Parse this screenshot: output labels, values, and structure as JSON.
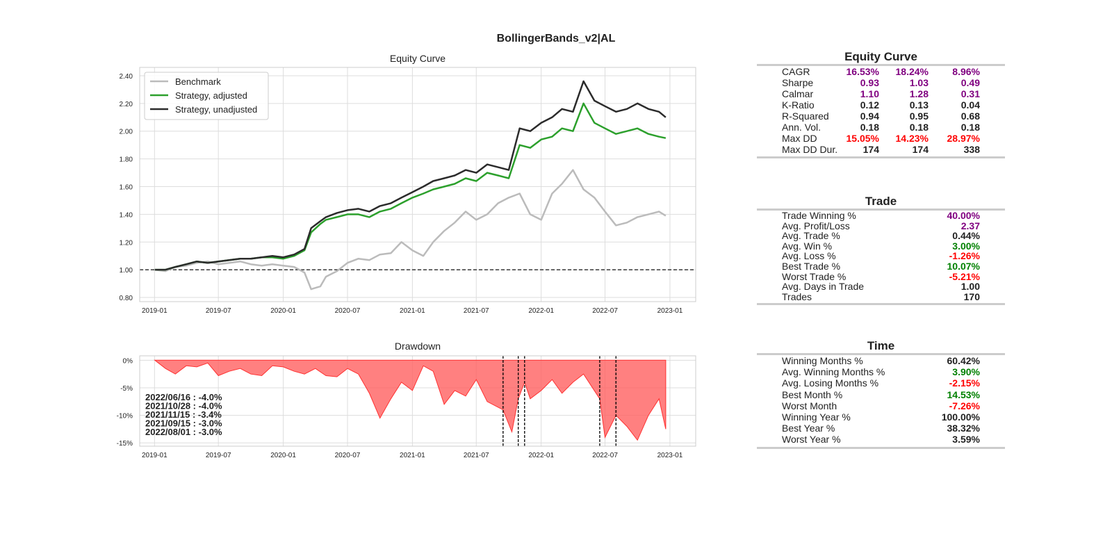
{
  "figure": {
    "title": "BollingerBands_v2|AL"
  },
  "colors": {
    "benchmark": "#bbbbbb",
    "strategy_adjusted": "#2ca02c",
    "strategy_unadjusted": "#2b2b2b",
    "drawdown_fill": "#ff6060",
    "purple": "#800080",
    "red": "#ff0000",
    "green": "#008000",
    "dark": "#222222"
  },
  "chart_data": [
    {
      "type": "line",
      "title": "Equity Curve",
      "xlabel": "",
      "ylabel": "",
      "x_ticks": [
        "2019-01",
        "2019-07",
        "2020-01",
        "2020-07",
        "2021-01",
        "2021-07",
        "2022-01",
        "2022-07",
        "2023-01"
      ],
      "y_ticks": [
        "0.80",
        "1.00",
        "1.20",
        "1.40",
        "1.60",
        "1.80",
        "2.00",
        "2.20",
        "2.40"
      ],
      "xlim": [
        "2018-11-20",
        "2023-03-15"
      ],
      "ylim": [
        0.77,
        2.46
      ],
      "grid": true,
      "legend": "top-left",
      "baseline": 1.0,
      "x": [
        "2019-01-02",
        "2019-02-01",
        "2019-03-01",
        "2019-04-01",
        "2019-05-01",
        "2019-06-01",
        "2019-07-01",
        "2019-08-01",
        "2019-09-01",
        "2019-10-01",
        "2019-11-01",
        "2019-12-01",
        "2020-01-01",
        "2020-02-01",
        "2020-03-01",
        "2020-03-20",
        "2020-04-15",
        "2020-05-01",
        "2020-06-01",
        "2020-07-01",
        "2020-08-01",
        "2020-09-01",
        "2020-10-01",
        "2020-11-01",
        "2020-12-01",
        "2021-01-01",
        "2021-02-01",
        "2021-03-01",
        "2021-04-01",
        "2021-05-01",
        "2021-06-01",
        "2021-07-01",
        "2021-08-01",
        "2021-09-01",
        "2021-10-01",
        "2021-11-01",
        "2021-12-01",
        "2022-01-01",
        "2022-02-01",
        "2022-03-01",
        "2022-04-01",
        "2022-05-01",
        "2022-06-01",
        "2022-07-01",
        "2022-08-01",
        "2022-09-01",
        "2022-10-01",
        "2022-11-01",
        "2022-12-01",
        "2022-12-20"
      ],
      "series": [
        {
          "name": "Benchmark",
          "values": [
            1.0,
            0.99,
            1.02,
            1.03,
            1.05,
            1.06,
            1.04,
            1.05,
            1.06,
            1.04,
            1.03,
            1.04,
            1.03,
            1.02,
            0.98,
            0.86,
            0.88,
            0.95,
            0.99,
            1.05,
            1.08,
            1.07,
            1.11,
            1.12,
            1.2,
            1.14,
            1.1,
            1.2,
            1.28,
            1.34,
            1.42,
            1.36,
            1.4,
            1.48,
            1.52,
            1.55,
            1.4,
            1.36,
            1.55,
            1.62,
            1.72,
            1.58,
            1.52,
            1.42,
            1.32,
            1.34,
            1.38,
            1.4,
            1.42,
            1.39
          ]
        },
        {
          "name": "Strategy, adjusted",
          "values": [
            1.0,
            1.0,
            1.02,
            1.04,
            1.06,
            1.05,
            1.06,
            1.07,
            1.08,
            1.08,
            1.09,
            1.09,
            1.08,
            1.1,
            1.14,
            1.27,
            1.33,
            1.36,
            1.38,
            1.4,
            1.4,
            1.38,
            1.42,
            1.44,
            1.48,
            1.52,
            1.55,
            1.58,
            1.6,
            1.62,
            1.66,
            1.64,
            1.7,
            1.68,
            1.66,
            1.9,
            1.88,
            1.94,
            1.96,
            2.02,
            2.0,
            2.2,
            2.06,
            2.02,
            1.98,
            2.0,
            2.02,
            1.98,
            1.96,
            1.95
          ]
        },
        {
          "name": "Strategy, unadjusted",
          "values": [
            1.0,
            1.0,
            1.02,
            1.04,
            1.06,
            1.05,
            1.06,
            1.07,
            1.08,
            1.08,
            1.09,
            1.1,
            1.09,
            1.11,
            1.15,
            1.3,
            1.35,
            1.38,
            1.41,
            1.43,
            1.44,
            1.42,
            1.46,
            1.48,
            1.52,
            1.56,
            1.6,
            1.64,
            1.66,
            1.68,
            1.72,
            1.7,
            1.76,
            1.74,
            1.72,
            2.02,
            2.0,
            2.06,
            2.1,
            2.16,
            2.14,
            2.36,
            2.22,
            2.18,
            2.14,
            2.16,
            2.2,
            2.16,
            2.14,
            2.1
          ]
        }
      ]
    },
    {
      "type": "area",
      "title": "Drawdown",
      "xlabel": "",
      "ylabel": "",
      "x_ticks": [
        "2019-01",
        "2019-07",
        "2020-01",
        "2020-07",
        "2021-01",
        "2021-07",
        "2022-01",
        "2022-07",
        "2023-01"
      ],
      "y_ticks": [
        "0%",
        "-5%",
        "-10%",
        "-15%"
      ],
      "xlim": [
        "2018-11-20",
        "2023-03-15"
      ],
      "ylim": [
        -15.6,
        0.8
      ],
      "grid": true,
      "x": [
        "2019-01-02",
        "2019-02-01",
        "2019-03-01",
        "2019-04-01",
        "2019-05-01",
        "2019-06-01",
        "2019-07-01",
        "2019-08-01",
        "2019-09-01",
        "2019-10-01",
        "2019-11-01",
        "2019-12-01",
        "2020-01-01",
        "2020-02-01",
        "2020-03-01",
        "2020-04-01",
        "2020-05-01",
        "2020-06-01",
        "2020-07-01",
        "2020-08-01",
        "2020-09-01",
        "2020-10-01",
        "2020-11-01",
        "2020-12-01",
        "2021-01-01",
        "2021-02-01",
        "2021-03-01",
        "2021-04-01",
        "2021-05-01",
        "2021-06-01",
        "2021-07-01",
        "2021-08-01",
        "2021-09-15",
        "2021-10-10",
        "2021-10-28",
        "2021-11-15",
        "2021-12-01",
        "2022-01-01",
        "2022-02-01",
        "2022-03-01",
        "2022-04-01",
        "2022-05-01",
        "2022-06-16",
        "2022-07-01",
        "2022-08-01",
        "2022-09-01",
        "2022-10-01",
        "2022-11-01",
        "2022-12-01",
        "2022-12-20"
      ],
      "values": [
        0,
        -1.5,
        -2.5,
        -1,
        -1.2,
        -0.5,
        -2.8,
        -2,
        -1.5,
        -2.5,
        -2.8,
        -1,
        -1.2,
        -2,
        -2.5,
        -1.5,
        -2.8,
        -3,
        -1.5,
        -2.5,
        -6,
        -10.5,
        -7,
        -4,
        -5.5,
        -1,
        -2,
        -8,
        -5.5,
        -6.5,
        -3.5,
        -7.5,
        -9,
        -13,
        -7,
        -4,
        -7,
        -5.5,
        -3.5,
        -6,
        -4,
        -2.5,
        -7,
        -14,
        -10,
        -12,
        -14.5,
        -10,
        -7,
        -12.5
      ],
      "highlight_dates": [
        "2021-09-15",
        "2021-10-28",
        "2021-11-15",
        "2022-06-16",
        "2022-08-01"
      ],
      "annotations": [
        "2022/06/16 : -4.0%",
        "2021/10/28 : -4.0%",
        "2021/11/15 : -3.4%",
        "2021/09/15 : -3.0%",
        "2022/08/01 : -3.0%"
      ]
    },
    {
      "type": "table",
      "title": "Equity Curve",
      "rows": [
        {
          "label": "CAGR",
          "values": [
            "16.53%",
            "18.24%",
            "8.96%"
          ],
          "color": "purple"
        },
        {
          "label": "Sharpe",
          "values": [
            "0.93",
            "1.03",
            "0.49"
          ],
          "color": "purple"
        },
        {
          "label": "Calmar",
          "values": [
            "1.10",
            "1.28",
            "0.31"
          ],
          "color": "purple"
        },
        {
          "label": "K-Ratio",
          "values": [
            "0.12",
            "0.13",
            "0.04"
          ],
          "color": "dark"
        },
        {
          "label": "R-Squared",
          "values": [
            "0.94",
            "0.95",
            "0.68"
          ],
          "color": "dark"
        },
        {
          "label": "Ann. Vol.",
          "values": [
            "0.18",
            "0.18",
            "0.18"
          ],
          "color": "dark"
        },
        {
          "label": "Max DD",
          "values": [
            "15.05%",
            "14.23%",
            "28.97%"
          ],
          "color": "red"
        },
        {
          "label": "Max DD Dur.",
          "values": [
            "174",
            "174",
            "338"
          ],
          "color": "dark"
        }
      ]
    },
    {
      "type": "table",
      "title": "Trade",
      "rows": [
        {
          "label": "Trade Winning %",
          "value": "40.00%",
          "color": "purple"
        },
        {
          "label": "Avg. Profit/Loss",
          "value": "2.37",
          "color": "purple"
        },
        {
          "label": "Avg. Trade %",
          "value": "0.44%",
          "color": "dark"
        },
        {
          "label": "Avg. Win %",
          "value": "3.00%",
          "color": "green"
        },
        {
          "label": "Avg. Loss %",
          "value": "-1.26%",
          "color": "red"
        },
        {
          "label": "Best Trade %",
          "value": "10.07%",
          "color": "green"
        },
        {
          "label": "Worst Trade %",
          "value": "-5.21%",
          "color": "red"
        },
        {
          "label": "Avg. Days in Trade",
          "value": "1.00",
          "color": "dark"
        },
        {
          "label": "Trades",
          "value": "170",
          "color": "dark"
        }
      ]
    },
    {
      "type": "table",
      "title": "Time",
      "rows": [
        {
          "label": "Winning Months %",
          "value": "60.42%",
          "color": "dark"
        },
        {
          "label": "Avg. Winning Months %",
          "value": "3.90%",
          "color": "green"
        },
        {
          "label": "Avg. Losing Months %",
          "value": "-2.15%",
          "color": "red"
        },
        {
          "label": "Best Month %",
          "value": "14.53%",
          "color": "green"
        },
        {
          "label": "Worst Month",
          "value": "-7.26%",
          "color": "red"
        },
        {
          "label": "Winning Year %",
          "value": "100.00%",
          "color": "dark"
        },
        {
          "label": "Best Year %",
          "value": "38.32%",
          "color": "dark"
        },
        {
          "label": "Worst Year %",
          "value": "3.59%",
          "color": "dark"
        }
      ]
    }
  ]
}
